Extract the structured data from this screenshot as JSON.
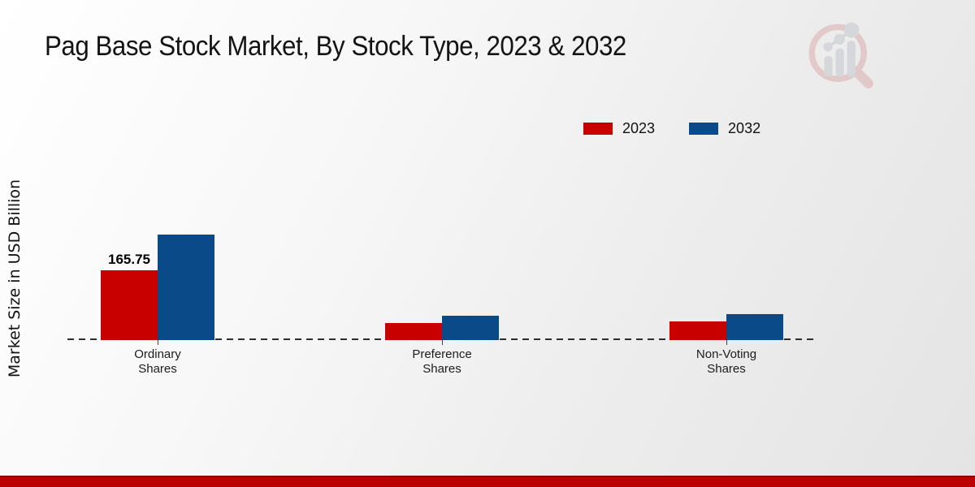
{
  "header": {
    "title": "Pag Base Stock Market, By Stock Type, 2023 & 2032",
    "logo_icon": "magnifier-bar-chart-logo"
  },
  "colors": {
    "series_2023": "#c80000",
    "series_2032": "#0b4a88",
    "footer": "#bb0000",
    "baseline": "#2e2e2e"
  },
  "chart_data": {
    "type": "bar",
    "title": "Pag Base Stock Market, By Stock Type, 2023 & 2032",
    "categories": [
      "Ordinary Shares",
      "Preference Shares",
      "Non-Voting Shares"
    ],
    "series": [
      {
        "name": "2023",
        "color": "#c80000",
        "values": [
          165.75,
          40,
          43.5
        ],
        "labels": [
          "165.75",
          "",
          ""
        ]
      },
      {
        "name": "2032",
        "color": "#0b4a88",
        "values": [
          250.5,
          58,
          62
        ],
        "labels": [
          "",
          "",
          ""
        ]
      }
    ],
    "xlabel": "",
    "ylabel": "Market Size in USD Billion",
    "ylim": [
      0,
      260
    ],
    "grid": false,
    "legend_position": "top-right",
    "baseline_style": "dashed",
    "annotations": [
      "165.75"
    ]
  }
}
